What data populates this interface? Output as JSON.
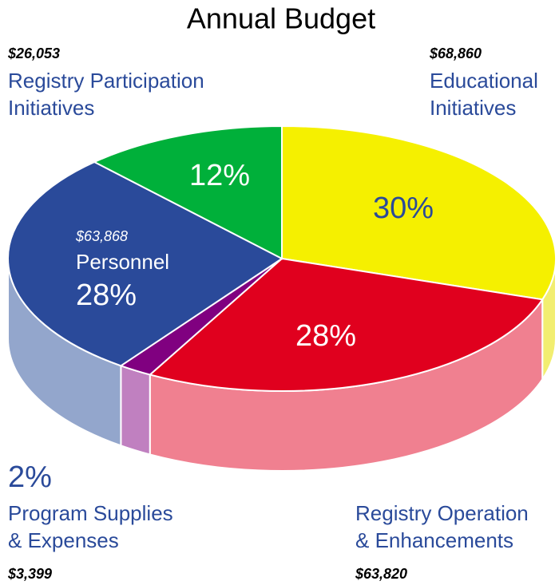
{
  "chart_data": {
    "type": "pie3d",
    "title": "Annual Budget",
    "categories": [
      "Educational\nInitiatives",
      "Registry Operation\n& Enhancements",
      "Program Supplies\n& Expenses",
      "Personnel",
      "Registry Participation\nInitiatives"
    ],
    "values": [
      30,
      28,
      2,
      28,
      12
    ],
    "value_labels": [
      "30%",
      "28%",
      "2%",
      "28%",
      "12%"
    ],
    "amounts": [
      "$68,860",
      "$63,820",
      "$3,399",
      "$63,868",
      "$26,053"
    ],
    "colors": [
      "#f5f000",
      "#e0001e",
      "#800080",
      "#2a4a9a",
      "#00b03a"
    ],
    "side_colors": [
      "#f2ee70",
      "#f08090",
      "#c080c0",
      "#93a6cc",
      "#7fd69a"
    ]
  }
}
